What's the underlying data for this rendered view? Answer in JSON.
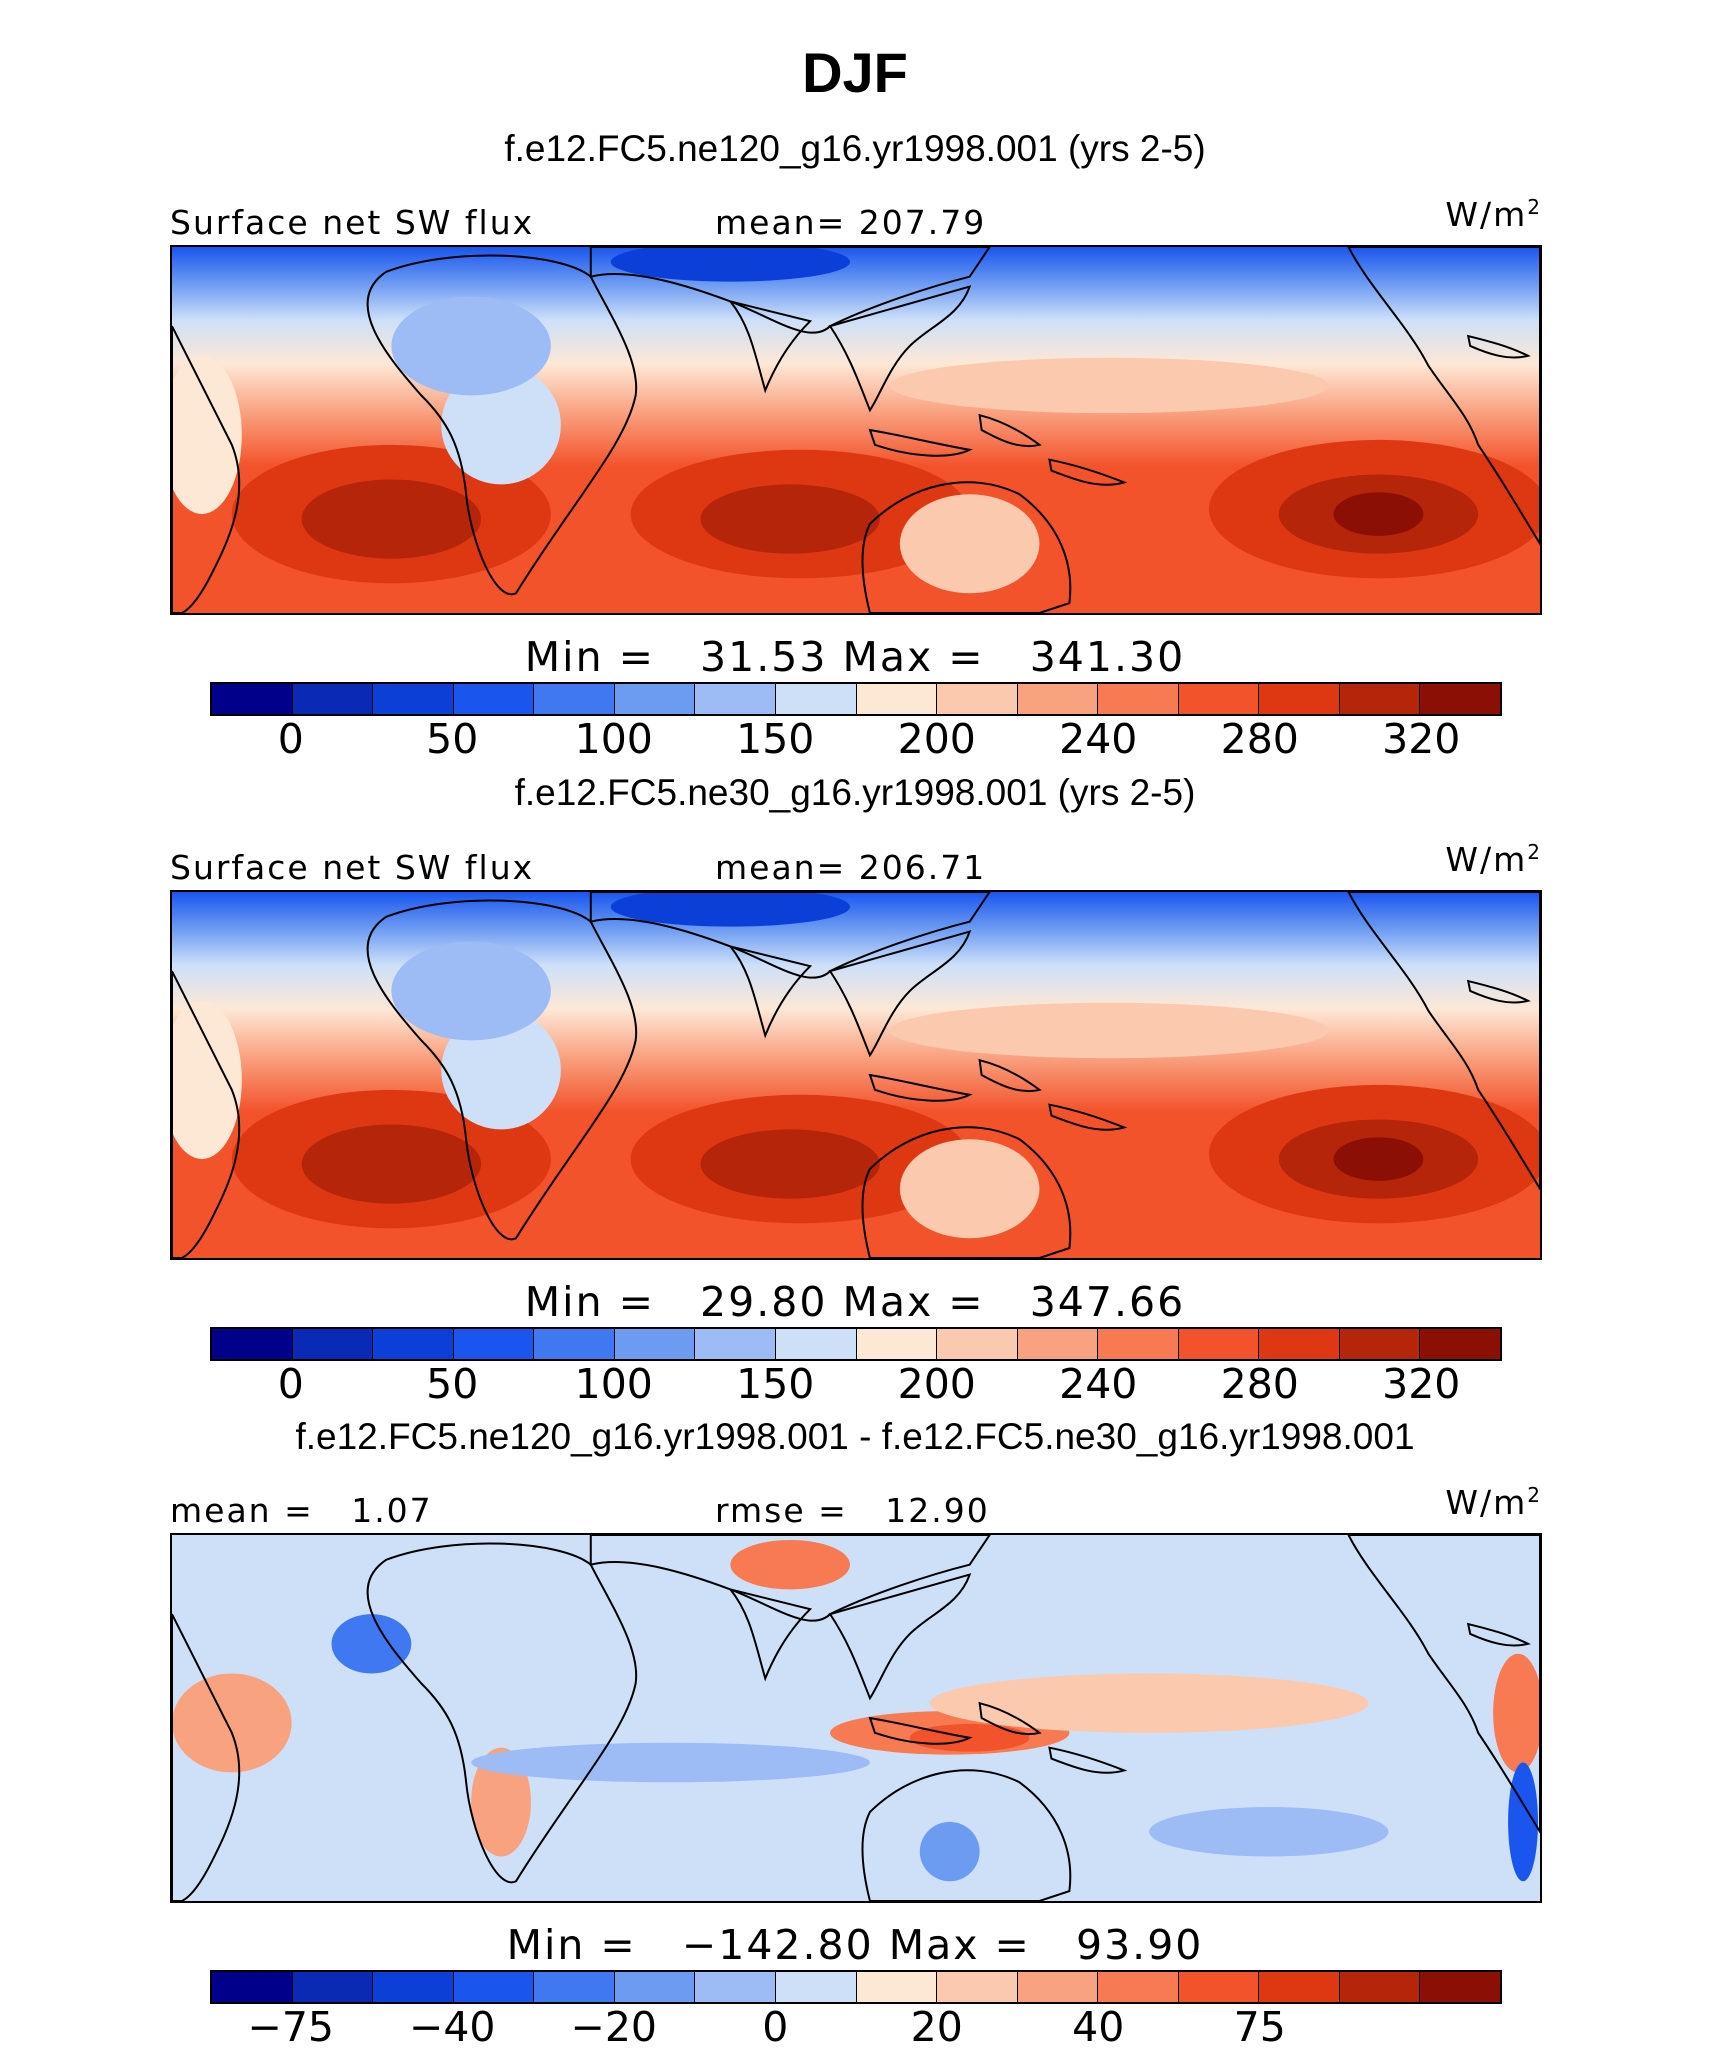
{
  "chart_data": {
    "type": "heatmap",
    "title": "DJF",
    "panels": [
      {
        "title": "f.e12.FC5.ne120_g16.yr1998.001 (yrs 2-5)",
        "left_label": "Surface net SW flux",
        "center_label": "mean= 207.79",
        "units": "W/m",
        "units_sup": "2",
        "min_label": "Min",
        "min_value": "31.53",
        "max_label": "Max",
        "max_value": "341.30",
        "mean": 207.79,
        "colorbar_levels": [
          "0",
          "50",
          "100",
          "150",
          "200",
          "240",
          "280",
          "320"
        ],
        "colors": [
          "#00008b",
          "#0a2ab6",
          "#0b3fd8",
          "#1a56ee",
          "#3f78f0",
          "#6c9bf2",
          "#9dbcf5",
          "#cde0f8",
          "#fde8d6",
          "#fbc9ad",
          "#f9a280",
          "#f77a52",
          "#f2532b",
          "#de3812",
          "#b52509",
          "#8b0f04"
        ]
      },
      {
        "title": "f.e12.FC5.ne30_g16.yr1998.001 (yrs 2-5)",
        "left_label": "Surface net SW flux",
        "center_label": "mean= 206.71",
        "units": "W/m",
        "units_sup": "2",
        "min_label": "Min",
        "min_value": "29.80",
        "max_label": "Max",
        "max_value": "347.66",
        "mean": 206.71,
        "colorbar_levels": [
          "0",
          "50",
          "100",
          "150",
          "200",
          "240",
          "280",
          "320"
        ],
        "colors": [
          "#00008b",
          "#0a2ab6",
          "#0b3fd8",
          "#1a56ee",
          "#3f78f0",
          "#6c9bf2",
          "#9dbcf5",
          "#cde0f8",
          "#fde8d6",
          "#fbc9ad",
          "#f9a280",
          "#f77a52",
          "#f2532b",
          "#de3812",
          "#b52509",
          "#8b0f04"
        ]
      },
      {
        "title": "f.e12.FC5.ne120_g16.yr1998.001 - f.e12.FC5.ne30_g16.yr1998.001",
        "left_label": "mean =   1.07",
        "center_label": "rmse =   12.90",
        "units": "W/m",
        "units_sup": "2",
        "min_label": "Min",
        "min_value": "−142.80",
        "max_label": "Max",
        "max_value": "93.90",
        "mean": 1.07,
        "rmse": 12.9,
        "colorbar_levels": [
          "−75",
          "−40",
          "−20",
          "0",
          "20",
          "40",
          "75"
        ],
        "colors": [
          "#00008b",
          "#0a2ab6",
          "#0b3fd8",
          "#1a56ee",
          "#3f78f0",
          "#6c9bf2",
          "#9dbcf5",
          "#cde0f8",
          "#fde8d6",
          "#fbc9ad",
          "#f9a280",
          "#f77a52",
          "#f2532b",
          "#de3812",
          "#b52509",
          "#8b0f04"
        ]
      }
    ]
  }
}
